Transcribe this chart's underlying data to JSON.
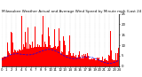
{
  "title": "Milwaukee Weather Actual and Average Wind Speed by Minute mph (Last 24 Hours)",
  "bg_color": "#ffffff",
  "bar_color": "#ff0000",
  "line_color": "#0000ff",
  "n_points": 1440,
  "seed": 42,
  "ylim": [
    0,
    25
  ],
  "yticks": [
    0,
    5,
    10,
    15,
    20,
    25
  ],
  "title_fontsize": 3.0,
  "axis_fontsize": 2.8,
  "num_xticks": 25,
  "grid_color": "#bbbbbb",
  "grid_style": ":"
}
